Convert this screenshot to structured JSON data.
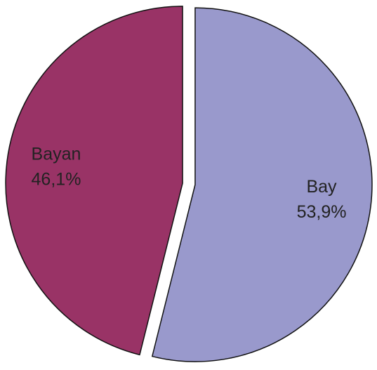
{
  "chart_data": {
    "type": "pie",
    "categories": [
      "Bay",
      "Bayan"
    ],
    "values": [
      53.9,
      46.1
    ],
    "value_labels": [
      "53,9%",
      "46,1%"
    ],
    "colors": [
      "#9999cc",
      "#993366"
    ]
  }
}
